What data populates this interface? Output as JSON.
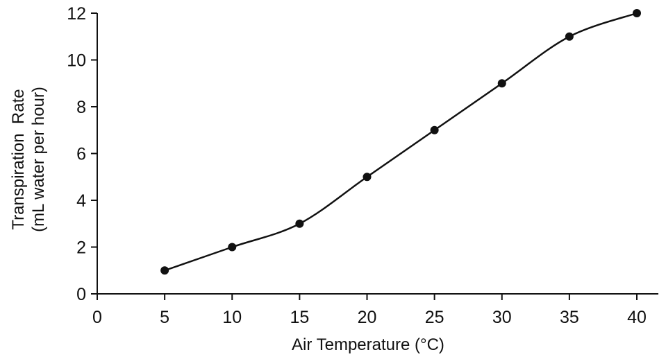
{
  "chart_data": {
    "type": "line",
    "xlabel": "Air Temperature (°C)",
    "ylabel_line1": "Transpiration  Rate",
    "ylabel_line2": "(mL water per hour)",
    "xlim": [
      0,
      40
    ],
    "ylim": [
      0,
      12
    ],
    "x_ticks": [
      0,
      5,
      10,
      15,
      20,
      25,
      30,
      35,
      40
    ],
    "y_ticks": [
      0,
      2,
      4,
      6,
      8,
      10,
      12
    ],
    "grid": false,
    "series": [
      {
        "x": [
          5,
          10,
          15,
          20,
          25,
          30,
          35,
          40
        ],
        "y": [
          1,
          2,
          3,
          5,
          7,
          9,
          11,
          12
        ]
      }
    ],
    "color": "#111111"
  }
}
